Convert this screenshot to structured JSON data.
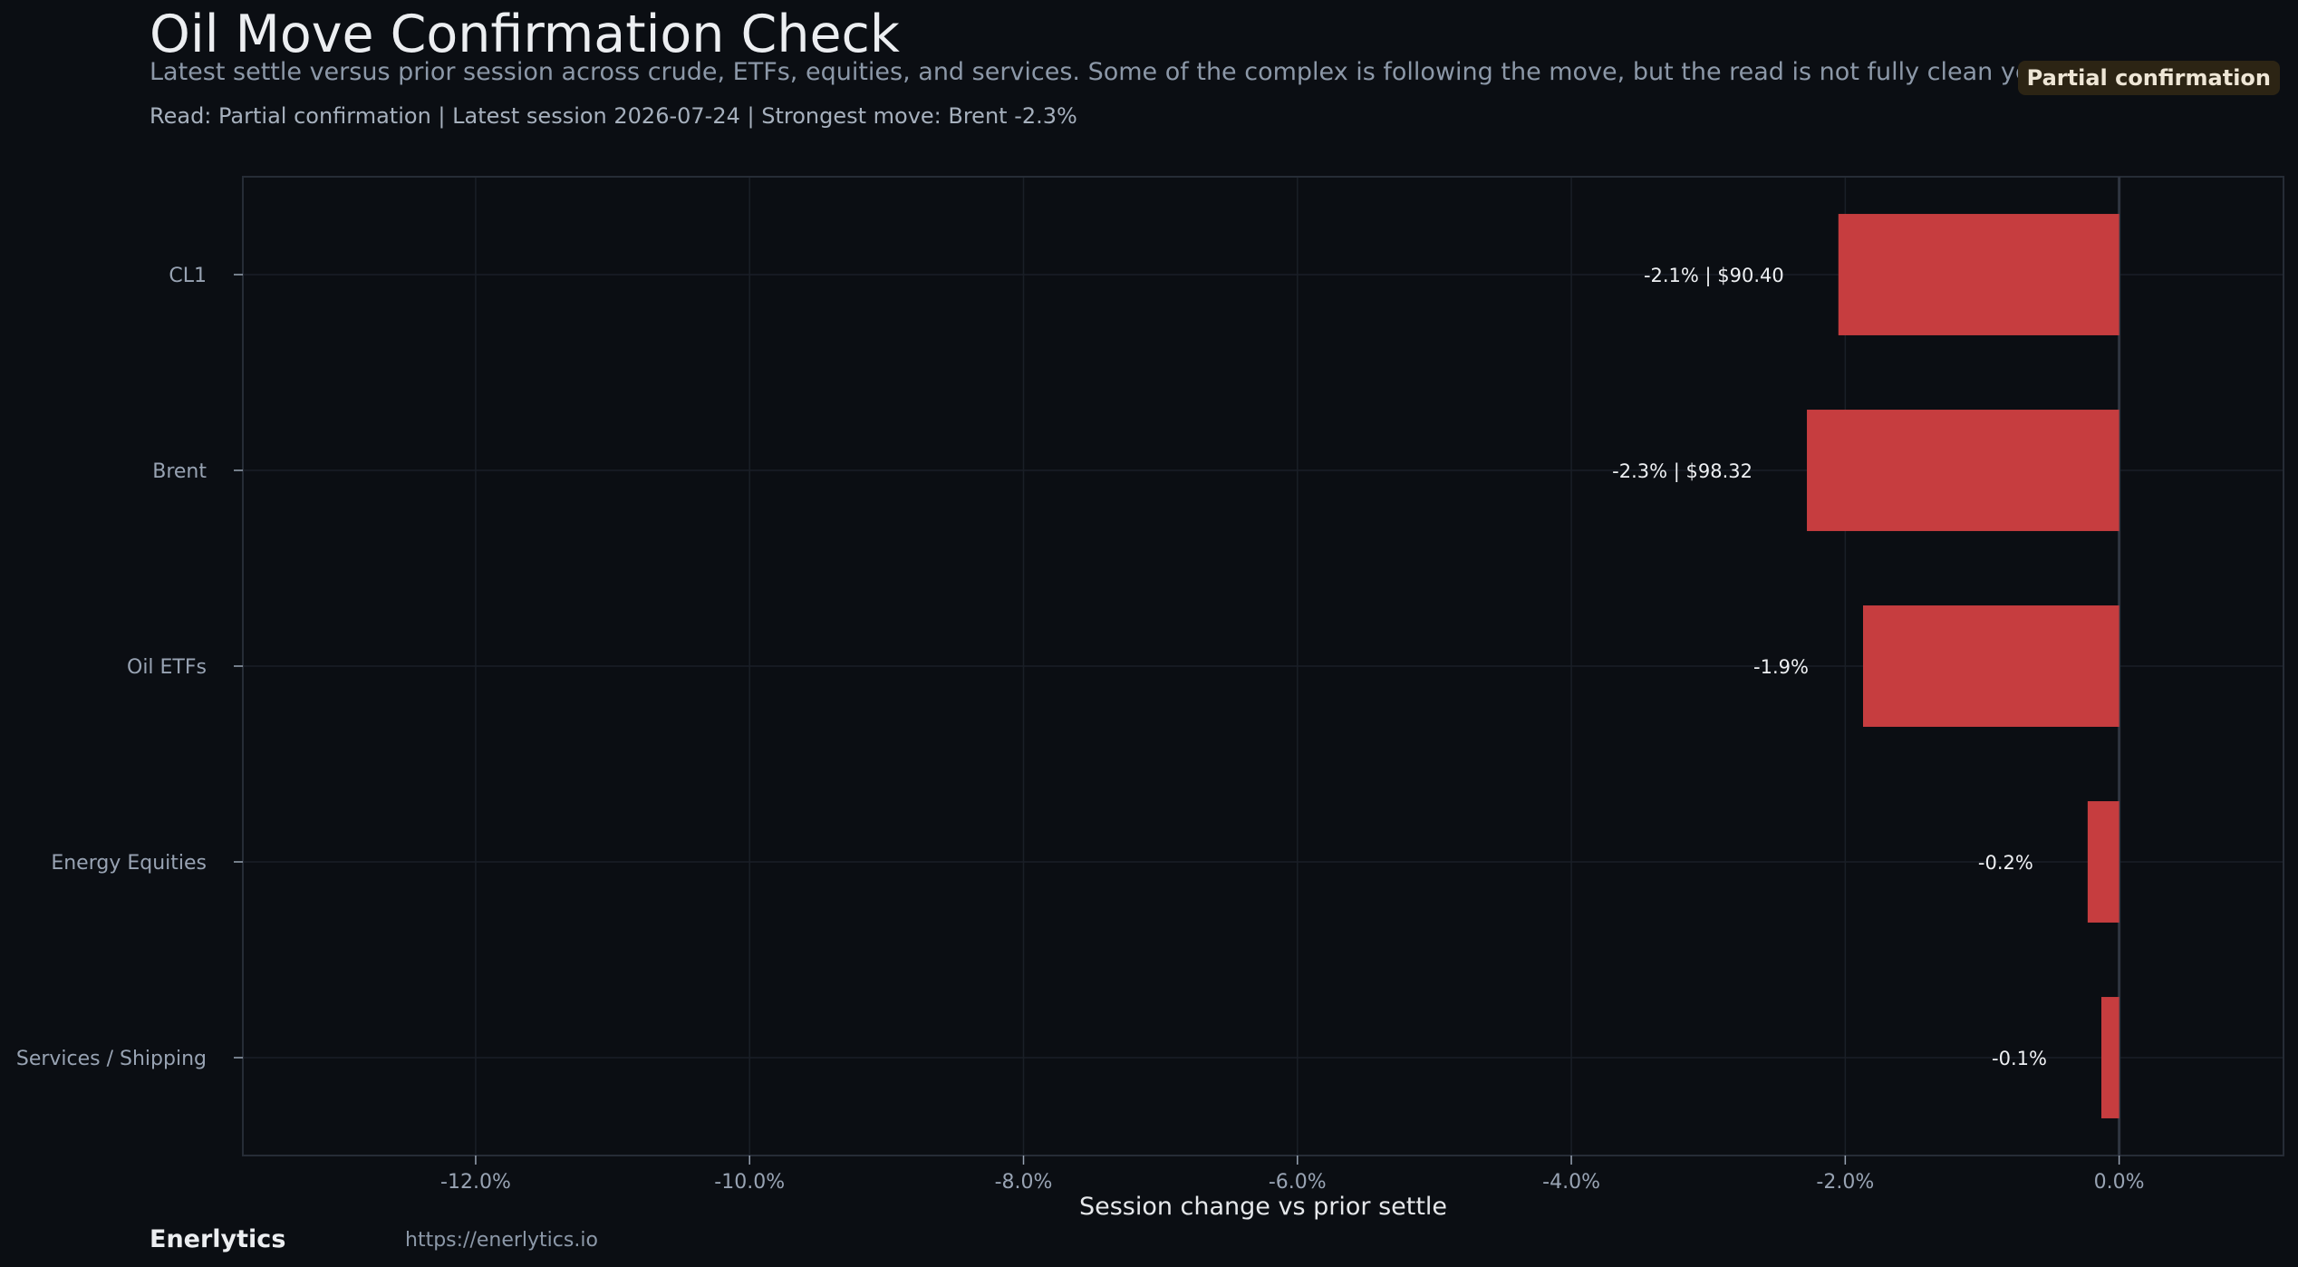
{
  "header": {
    "title": "Oil Move Confirmation Check",
    "subtitle": "Latest settle versus prior session across crude, ETFs, equities, and services. Some of the complex is following the move, but the read is not fully clean yet.",
    "read_line": "Read: Partial confirmation  |  Latest session 2026-07-24  |  Strongest move: Brent -2.3%",
    "badge": "Partial confirmation"
  },
  "footer": {
    "brand": "Enerlytics",
    "url": "https://enerlytics.io"
  },
  "colors": {
    "background": "#0b0e13",
    "bar": "#c63d3f",
    "grid": "#1a1f27",
    "axis_text": "#98a3b3",
    "label_text": "#eef0f3",
    "badge_bg": "#2c2414"
  },
  "chart_data": {
    "type": "bar",
    "orientation": "horizontal",
    "categories": [
      "CL1",
      "Brent",
      "Oil ETFs",
      "Energy Equities",
      "Services / Shipping"
    ],
    "values": [
      -2.05,
      -2.28,
      -1.87,
      -0.23,
      -0.13
    ],
    "data_labels": [
      "-2.1% | $90.40",
      "-2.3% | $98.32",
      "-1.9%",
      "-0.2%",
      "-0.1%"
    ],
    "xlabel": "Session change vs prior settle",
    "ylabel": "",
    "xlim": [
      -13.7,
      1.2
    ],
    "xticks": [
      -12,
      -10,
      -8,
      -6,
      -4,
      -2,
      0
    ],
    "xtick_labels": [
      "-12.0%",
      "-10.0%",
      "-8.0%",
      "-6.0%",
      "-4.0%",
      "-2.0%",
      "0.0%"
    ],
    "grid": true
  }
}
